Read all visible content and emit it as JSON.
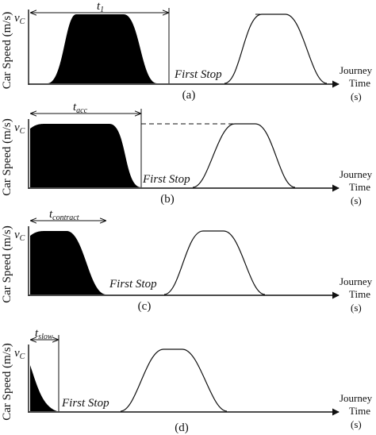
{
  "figure": {
    "ylabel": "Car Speed (m/s)",
    "ytick_label": "v",
    "ytick_subscript": "C",
    "xlabel_line1": "Journey",
    "xlabel_line2": "Time",
    "xlabel_line3": "(s)",
    "first_stop_label": "First Stop"
  },
  "chart_data": [
    {
      "type": "area",
      "panel": "(a)",
      "interval_label": "t",
      "interval_subscript": "1",
      "filled_segment": {
        "shape": "full-acceleration-cruise-deceleration",
        "duration_fraction": 0.49
      },
      "outline_segment": {
        "shape": "acceleration-cruise-deceleration"
      },
      "ylim": [
        0,
        1
      ],
      "x_unit": "s"
    },
    {
      "type": "area",
      "panel": "(b)",
      "interval_label": "t",
      "interval_subscript": "acc",
      "filled_segment": {
        "shape": "cruise-then-deceleration",
        "duration_fraction": 0.36
      },
      "outline_segment": {
        "shape": "acceleration-cruise-deceleration"
      },
      "ylim": [
        0,
        1
      ],
      "x_unit": "s"
    },
    {
      "type": "area",
      "panel": "(c)",
      "interval_label": "t",
      "interval_subscript": "contract",
      "filled_segment": {
        "shape": "partial-cruise-then-deceleration",
        "duration_fraction": 0.24
      },
      "outline_segment": {
        "shape": "acceleration-cruise-deceleration"
      },
      "ylim": [
        0,
        1
      ],
      "x_unit": "s"
    },
    {
      "type": "area",
      "panel": "(d)",
      "interval_label": "t",
      "interval_subscript": "slow",
      "filled_segment": {
        "shape": "deceleration-only",
        "duration_fraction": 0.1
      },
      "outline_segment": {
        "shape": "acceleration-cruise-deceleration"
      },
      "ylim": [
        0,
        1
      ],
      "x_unit": "s"
    }
  ]
}
